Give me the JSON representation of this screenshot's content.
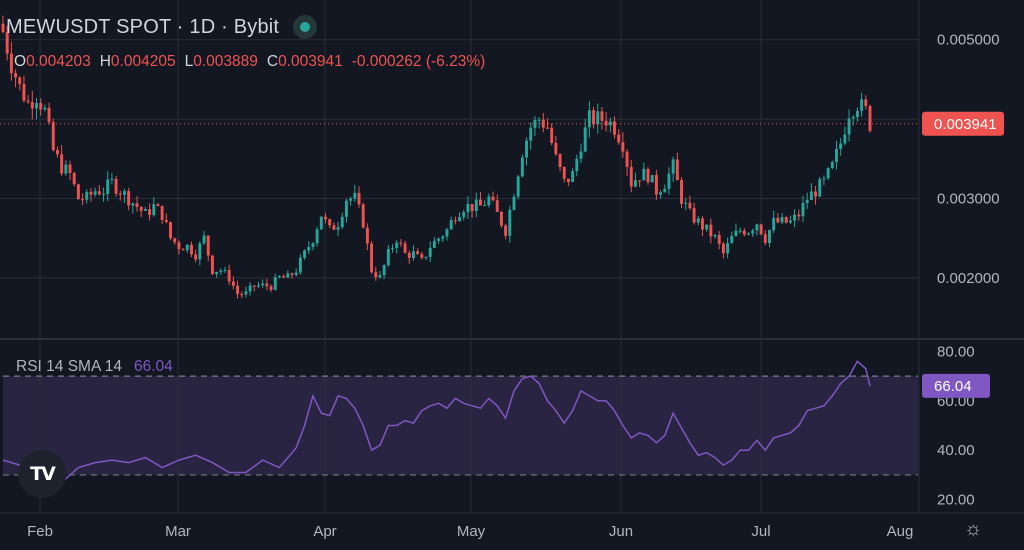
{
  "header": {
    "title": "MEWUSDT SPOT · 1D · Bybit",
    "ohlc": {
      "o_label": "O",
      "o_value": "0.004203",
      "h_label": "H",
      "h_value": "0.004205",
      "l_label": "L",
      "l_value": "0.003889",
      "c_label": "C",
      "c_value": "0.003941",
      "change": "-0.000262 (-6.23%)"
    }
  },
  "rsi_legend": {
    "label": "RSI 14 SMA 14",
    "value": "66.04"
  },
  "colors": {
    "background": "#131722",
    "grid": "#2a2e39",
    "up": "#26a69a",
    "down": "#ef5350",
    "rsi_line": "#7e57c2",
    "rsi_band": "#2a2443",
    "text": "#d1d4dc",
    "axis_text": "#b2b5be"
  },
  "chart_data": [
    {
      "type": "candlestick",
      "title": "MEWUSDT SPOT · 1D · Bybit",
      "x_tick_labels": [
        "Feb",
        "Mar",
        "Apr",
        "May",
        "Jun",
        "Jul",
        "Aug"
      ],
      "y_tick_labels": [
        "0.005000",
        "0.003000",
        "0.002000"
      ],
      "y_ticks": [
        0.005,
        0.004,
        0.003,
        0.002
      ],
      "ylim": [
        0.00128,
        0.0054
      ],
      "last_price": 0.003941,
      "last_price_label": "0.003941",
      "grid": true,
      "close_points": [
        [
          0,
          0.0051
        ],
        [
          2,
          0.0047
        ],
        [
          4,
          0.0044
        ],
        [
          6,
          0.0042
        ],
        [
          8,
          0.0043
        ],
        [
          10,
          0.0041
        ],
        [
          12,
          0.0036
        ],
        [
          14,
          0.0034
        ],
        [
          16,
          0.0033
        ],
        [
          18,
          0.003
        ],
        [
          20,
          0.003
        ],
        [
          22,
          0.0031
        ],
        [
          24,
          0.0031
        ],
        [
          26,
          0.0032
        ],
        [
          28,
          0.0031
        ],
        [
          30,
          0.003
        ],
        [
          32,
          0.0029
        ],
        [
          34,
          0.0028
        ],
        [
          36,
          0.0029
        ],
        [
          38,
          0.0028
        ],
        [
          40,
          0.0025
        ],
        [
          42,
          0.0024
        ],
        [
          44,
          0.0024
        ],
        [
          46,
          0.0023
        ],
        [
          48,
          0.0025
        ],
        [
          50,
          0.0021
        ],
        [
          52,
          0.0021
        ],
        [
          54,
          0.002
        ],
        [
          56,
          0.0018
        ],
        [
          58,
          0.0018
        ],
        [
          60,
          0.0019
        ],
        [
          62,
          0.0019
        ],
        [
          64,
          0.0019
        ],
        [
          66,
          0.002
        ],
        [
          68,
          0.002
        ],
        [
          70,
          0.0021
        ],
        [
          72,
          0.0023
        ],
        [
          74,
          0.0025
        ],
        [
          76,
          0.0028
        ],
        [
          78,
          0.0026
        ],
        [
          80,
          0.0027
        ],
        [
          82,
          0.003
        ],
        [
          84,
          0.003
        ],
        [
          86,
          0.0027
        ],
        [
          88,
          0.0021
        ],
        [
          90,
          0.002
        ],
        [
          92,
          0.0023
        ],
        [
          94,
          0.0025
        ],
        [
          96,
          0.0023
        ],
        [
          98,
          0.0023
        ],
        [
          100,
          0.0022
        ],
        [
          102,
          0.0024
        ],
        [
          104,
          0.0025
        ],
        [
          106,
          0.0026
        ],
        [
          108,
          0.0028
        ],
        [
          110,
          0.0029
        ],
        [
          112,
          0.0029
        ],
        [
          114,
          0.0029
        ],
        [
          116,
          0.003
        ],
        [
          118,
          0.0028
        ],
        [
          120,
          0.0026
        ],
        [
          122,
          0.0031
        ],
        [
          124,
          0.0036
        ],
        [
          126,
          0.0039
        ],
        [
          128,
          0.004
        ],
        [
          130,
          0.0039
        ],
        [
          132,
          0.0035
        ],
        [
          134,
          0.0032
        ],
        [
          136,
          0.0033
        ],
        [
          138,
          0.0037
        ],
        [
          140,
          0.004
        ],
        [
          142,
          0.004
        ],
        [
          144,
          0.004
        ],
        [
          146,
          0.0039
        ],
        [
          148,
          0.0037
        ],
        [
          150,
          0.0032
        ],
        [
          152,
          0.0033
        ],
        [
          154,
          0.0033
        ],
        [
          156,
          0.0031
        ],
        [
          158,
          0.0032
        ],
        [
          160,
          0.0034
        ],
        [
          162,
          0.003
        ],
        [
          164,
          0.0028
        ],
        [
          166,
          0.0027
        ],
        [
          168,
          0.0026
        ],
        [
          170,
          0.0025
        ],
        [
          172,
          0.0023
        ],
        [
          174,
          0.0025
        ],
        [
          176,
          0.0026
        ],
        [
          178,
          0.0026
        ],
        [
          180,
          0.0027
        ],
        [
          182,
          0.0025
        ],
        [
          184,
          0.0027
        ],
        [
          186,
          0.0027
        ],
        [
          188,
          0.0027
        ],
        [
          190,
          0.0028
        ],
        [
          192,
          0.003
        ],
        [
          194,
          0.0031
        ],
        [
          196,
          0.0032
        ],
        [
          198,
          0.0034
        ],
        [
          200,
          0.0037
        ],
        [
          202,
          0.0041
        ],
        [
          204,
          0.0042
        ],
        [
          206,
          0.0041
        ],
        [
          207,
          0.003941
        ]
      ]
    },
    {
      "type": "line",
      "title": "RSI 14 SMA 14",
      "y_tick_labels": [
        "80.00",
        "60.00",
        "40.00",
        "20.00"
      ],
      "y_ticks": [
        80,
        60,
        40,
        20
      ],
      "ylim": [
        15,
        83
      ],
      "band": [
        30,
        70
      ],
      "last_value": 66.04,
      "last_value_label": "66.04",
      "points": [
        [
          0,
          36
        ],
        [
          4,
          34
        ],
        [
          8,
          35
        ],
        [
          12,
          31
        ],
        [
          14,
          27
        ],
        [
          18,
          33
        ],
        [
          22,
          35
        ],
        [
          26,
          36
        ],
        [
          30,
          35
        ],
        [
          34,
          37
        ],
        [
          38,
          33
        ],
        [
          42,
          36
        ],
        [
          46,
          38
        ],
        [
          50,
          35
        ],
        [
          54,
          31
        ],
        [
          58,
          31
        ],
        [
          62,
          36
        ],
        [
          66,
          33
        ],
        [
          70,
          41
        ],
        [
          72,
          50
        ],
        [
          74,
          62
        ],
        [
          76,
          55
        ],
        [
          78,
          54
        ],
        [
          80,
          62
        ],
        [
          82,
          61
        ],
        [
          84,
          57
        ],
        [
          86,
          50
        ],
        [
          88,
          40
        ],
        [
          90,
          42
        ],
        [
          92,
          50
        ],
        [
          94,
          50
        ],
        [
          96,
          52
        ],
        [
          98,
          51
        ],
        [
          100,
          56
        ],
        [
          102,
          58
        ],
        [
          104,
          59
        ],
        [
          106,
          57
        ],
        [
          108,
          61
        ],
        [
          110,
          59
        ],
        [
          112,
          58
        ],
        [
          114,
          57
        ],
        [
          116,
          61
        ],
        [
          118,
          58
        ],
        [
          120,
          53
        ],
        [
          122,
          64
        ],
        [
          124,
          69
        ],
        [
          126,
          70
        ],
        [
          128,
          67
        ],
        [
          130,
          60
        ],
        [
          132,
          56
        ],
        [
          134,
          51
        ],
        [
          136,
          56
        ],
        [
          138,
          64
        ],
        [
          140,
          62
        ],
        [
          142,
          60
        ],
        [
          144,
          60
        ],
        [
          146,
          56
        ],
        [
          148,
          50
        ],
        [
          150,
          45
        ],
        [
          152,
          47
        ],
        [
          154,
          46
        ],
        [
          156,
          43
        ],
        [
          158,
          46
        ],
        [
          160,
          55
        ],
        [
          162,
          49
        ],
        [
          164,
          43
        ],
        [
          166,
          38
        ],
        [
          168,
          39
        ],
        [
          170,
          37
        ],
        [
          172,
          34
        ],
        [
          174,
          36
        ],
        [
          176,
          40
        ],
        [
          178,
          40
        ],
        [
          180,
          44
        ],
        [
          182,
          40
        ],
        [
          184,
          45
        ],
        [
          186,
          46
        ],
        [
          188,
          47
        ],
        [
          190,
          50
        ],
        [
          192,
          56
        ],
        [
          194,
          57
        ],
        [
          196,
          58
        ],
        [
          198,
          62
        ],
        [
          200,
          67
        ],
        [
          202,
          70
        ],
        [
          204,
          76
        ],
        [
          206,
          73
        ],
        [
          207,
          66
        ]
      ]
    }
  ]
}
